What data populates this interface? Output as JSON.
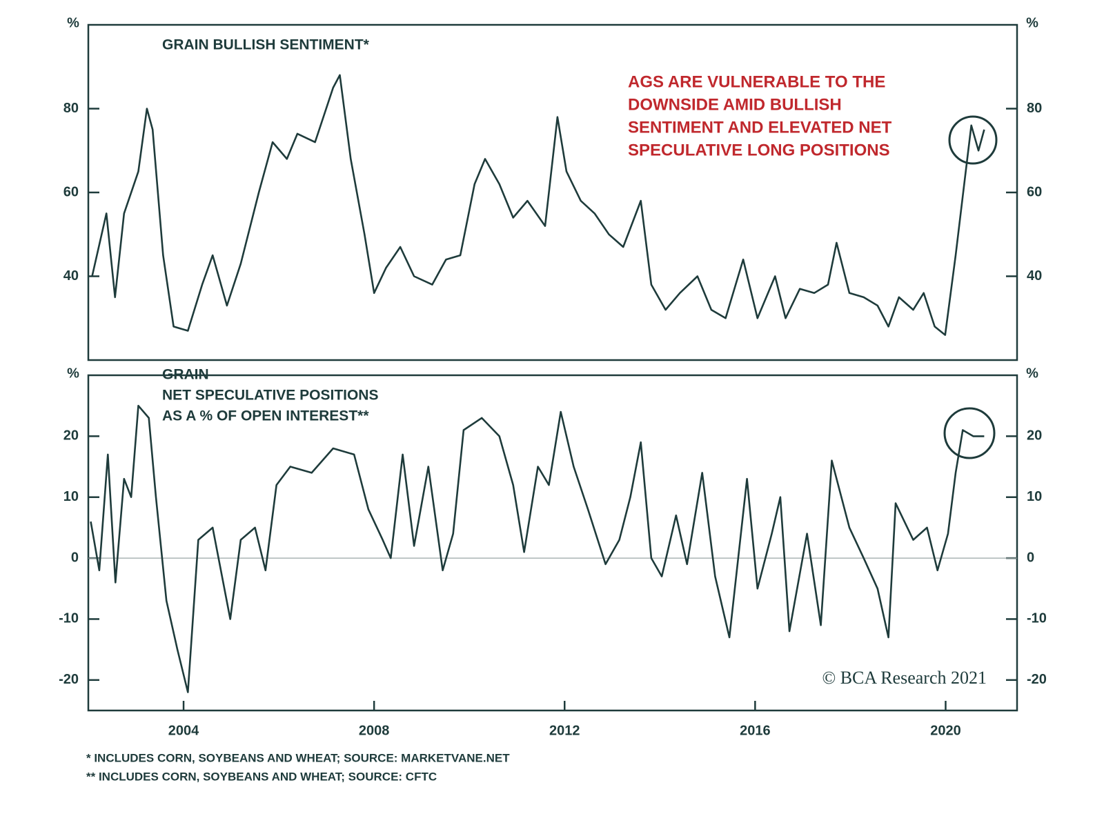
{
  "chart_data": [
    {
      "type": "line",
      "title": [
        "GRAIN BULLISH SENTIMENT*"
      ],
      "y_label": "%",
      "y2_label": "%",
      "annotation": {
        "lines": [
          "AGS ARE VULNERABLE TO THE",
          "DOWNSIDE AMID BULLISH",
          "SENTIMENT AND ELEVATED NET",
          "SPECULATIVE LONG POSITIONS"
        ],
        "color": "#c0282d"
      },
      "xlim": [
        2002,
        2021.5
      ],
      "ylim": [
        20,
        100
      ],
      "yticks": [
        40,
        60,
        80
      ],
      "x": [
        2002.08,
        2002.38,
        2002.56,
        2002.75,
        2003.05,
        2003.23,
        2003.35,
        2003.57,
        2003.79,
        2004.09,
        2004.39,
        2004.61,
        2004.91,
        2005.2,
        2005.58,
        2005.87,
        2006.17,
        2006.39,
        2006.76,
        2007.14,
        2007.28,
        2007.51,
        2007.8,
        2008.0,
        2008.25,
        2008.55,
        2008.84,
        2009.22,
        2009.51,
        2009.81,
        2010.11,
        2010.33,
        2010.63,
        2010.92,
        2011.22,
        2011.59,
        2011.85,
        2012.04,
        2012.34,
        2012.63,
        2012.93,
        2013.23,
        2013.6,
        2013.82,
        2014.12,
        2014.42,
        2014.79,
        2015.08,
        2015.38,
        2015.75,
        2016.05,
        2016.42,
        2016.64,
        2016.94,
        2017.24,
        2017.53,
        2017.71,
        2017.98,
        2018.28,
        2018.57,
        2018.8,
        2019.02,
        2019.32,
        2019.54,
        2019.77,
        2019.99,
        2020.21,
        2020.39,
        2020.54,
        2020.69,
        2020.81
      ],
      "series": [
        {
          "color": "#1e3b3b",
          "values": [
            40,
            55,
            35,
            55,
            65,
            80,
            75,
            45,
            28,
            27,
            38,
            45,
            33,
            43,
            60,
            72,
            68,
            74,
            72,
            85,
            88,
            68,
            50,
            36,
            42,
            47,
            40,
            38,
            44,
            45,
            62,
            68,
            62,
            54,
            58,
            52,
            78,
            65,
            58,
            55,
            50,
            47,
            58,
            38,
            32,
            36,
            40,
            32,
            30,
            44,
            30,
            40,
            30,
            37,
            36,
            38,
            48,
            36,
            35,
            33,
            28,
            35,
            32,
            36,
            28,
            26,
            45,
            62,
            76,
            70,
            75
          ]
        }
      ]
    },
    {
      "type": "line",
      "title": [
        "GRAIN",
        "NET SPECULATIVE POSITIONS",
        "AS A % OF OPEN INTEREST**"
      ],
      "y_label": "%",
      "y2_label": "%",
      "zero_line": true,
      "xlim": [
        2002,
        2021.5
      ],
      "xticks": [
        2004,
        2008,
        2012,
        2016,
        2020
      ],
      "ylim": [
        -25,
        30
      ],
      "yticks": [
        -20,
        -10,
        0,
        10,
        20
      ],
      "x": [
        2002.05,
        2002.23,
        2002.41,
        2002.57,
        2002.75,
        2002.9,
        2003.05,
        2003.27,
        2003.42,
        2003.64,
        2003.87,
        2004.09,
        2004.31,
        2004.61,
        2004.98,
        2005.2,
        2005.5,
        2005.72,
        2005.95,
        2006.24,
        2006.69,
        2007.14,
        2007.58,
        2007.88,
        2008.18,
        2008.35,
        2008.6,
        2008.84,
        2009.14,
        2009.44,
        2009.66,
        2009.88,
        2010.26,
        2010.63,
        2010.92,
        2011.15,
        2011.44,
        2011.67,
        2011.92,
        2012.19,
        2012.49,
        2012.86,
        2013.15,
        2013.38,
        2013.6,
        2013.82,
        2014.04,
        2014.34,
        2014.57,
        2014.89,
        2015.16,
        2015.46,
        2015.83,
        2016.05,
        2016.35,
        2016.53,
        2016.72,
        2017.09,
        2017.38,
        2017.61,
        2017.98,
        2018.28,
        2018.57,
        2018.8,
        2018.95,
        2019.32,
        2019.61,
        2019.83,
        2020.05,
        2020.21,
        2020.36,
        2020.58,
        2020.81
      ],
      "series": [
        {
          "color": "#1e3b3b",
          "values": [
            6,
            -2,
            17,
            -4,
            13,
            10,
            25,
            23,
            10,
            -7,
            -15,
            -22,
            3,
            5,
            -10,
            3,
            5,
            -2,
            12,
            15,
            14,
            18,
            17,
            8,
            3,
            0,
            17,
            2,
            15,
            -2,
            4,
            21,
            23,
            20,
            12,
            1,
            15,
            12,
            24,
            15,
            8,
            -1,
            3,
            10,
            19,
            0,
            -3,
            7,
            -1,
            14,
            -3,
            -13,
            13,
            -5,
            4,
            10,
            -12,
            4,
            -11,
            16,
            5,
            0,
            -5,
            -13,
            9,
            3,
            5,
            -2,
            4,
            14,
            21,
            20,
            20
          ]
        }
      ]
    }
  ],
  "credit": "© BCA Research 2021",
  "footnotes": [
    "* INCLUDES CORN, SOYBEANS AND WHEAT; SOURCE: MARKETVANE.NET",
    "** INCLUDES CORN, SOYBEANS AND WHEAT; SOURCE: CFTC"
  ]
}
